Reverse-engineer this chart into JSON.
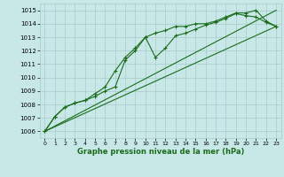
{
  "title": "Graphe pression niveau de la mer (hPa)",
  "bg_color": "#c8e8e8",
  "grid_color": "#a8caca",
  "line_color": "#1a6c1a",
  "xlim": [
    -0.5,
    23.5
  ],
  "ylim": [
    1005.5,
    1015.5
  ],
  "xticks": [
    0,
    1,
    2,
    3,
    4,
    5,
    6,
    7,
    8,
    9,
    10,
    11,
    12,
    13,
    14,
    15,
    16,
    17,
    18,
    19,
    20,
    21,
    22,
    23
  ],
  "yticks": [
    1006,
    1007,
    1008,
    1009,
    1010,
    1011,
    1012,
    1013,
    1014,
    1015
  ],
  "series1": {
    "x": [
      0,
      1,
      2,
      3,
      4,
      5,
      6,
      7,
      8,
      9,
      10,
      11,
      12,
      13,
      14,
      15,
      16,
      17,
      18,
      19,
      20,
      21,
      22,
      23
    ],
    "y": [
      1006.0,
      1007.1,
      1007.8,
      1008.1,
      1008.3,
      1008.8,
      1009.3,
      1010.5,
      1011.5,
      1012.2,
      1013.0,
      1013.3,
      1013.5,
      1013.8,
      1013.8,
      1014.0,
      1014.0,
      1014.2,
      1014.5,
      1014.8,
      1014.8,
      1015.0,
      1014.2,
      1013.8
    ]
  },
  "series2": {
    "x": [
      0,
      1,
      2,
      3,
      4,
      5,
      6,
      7,
      8,
      9,
      10,
      11,
      12,
      13,
      14,
      15,
      16,
      17,
      18,
      19,
      20,
      21,
      22,
      23
    ],
    "y": [
      1006.0,
      1007.1,
      1007.8,
      1008.1,
      1008.3,
      1008.6,
      1009.0,
      1009.3,
      1011.3,
      1012.0,
      1013.0,
      1011.5,
      1012.2,
      1013.1,
      1013.3,
      1013.6,
      1013.9,
      1014.1,
      1014.4,
      1014.75,
      1014.6,
      1014.5,
      1014.1,
      1013.8
    ]
  },
  "series3": {
    "x": [
      0,
      23
    ],
    "y": [
      1006.0,
      1013.8
    ]
  },
  "series4": {
    "x": [
      0,
      23
    ],
    "y": [
      1006.0,
      1015.0
    ]
  }
}
